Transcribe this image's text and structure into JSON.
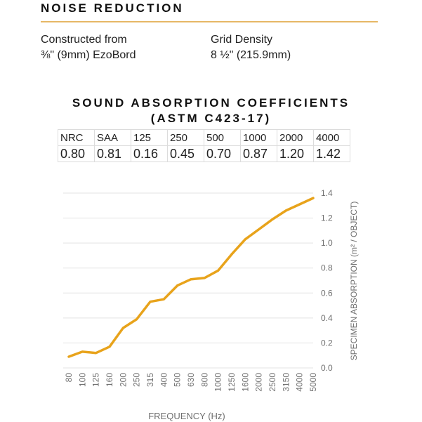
{
  "header": {
    "title": "NOISE  REDUCTION"
  },
  "specs": {
    "left": {
      "label": "Constructed from",
      "value": "⅜\" (9mm) EzoBord"
    },
    "right": {
      "label": "Grid Density",
      "value": "8 ½\" (215.9mm)"
    }
  },
  "section": {
    "title_line1": "SOUND ABSORPTION COEFFICIENTS",
    "title_line2": "(ASTM C423-17)"
  },
  "coefficients_table": {
    "headers": [
      "NRC",
      "SAA",
      "125",
      "250",
      "500",
      "1000",
      "2000",
      "4000"
    ],
    "values": [
      "0.80",
      "0.81",
      "0.16",
      "0.45",
      "0.70",
      "0.87",
      "1.20",
      "1.42"
    ]
  },
  "colors": {
    "line": "#e8a31b",
    "grid": "#e3e3e3",
    "axis_text": "#6f6f6f",
    "rule": "#e6b866"
  },
  "chart_data": {
    "type": "line",
    "xlabel": "FREQUENCY (Hz)",
    "ylabel": "SPECIMEN ABSORPTION (m² / OBJECT)",
    "categories": [
      "80",
      "100",
      "125",
      "160",
      "200",
      "250",
      "315",
      "400",
      "500",
      "630",
      "800",
      "1000",
      "1250",
      "1600",
      "2000",
      "2500",
      "3150",
      "4000",
      "5000"
    ],
    "series": [
      {
        "values": [
          0.09,
          0.13,
          0.12,
          0.17,
          0.32,
          0.39,
          0.53,
          0.55,
          0.66,
          0.71,
          0.72,
          0.78,
          0.91,
          1.03,
          1.11,
          1.19,
          1.26,
          1.31,
          1.36
        ]
      }
    ],
    "ylim": [
      0,
      1.4
    ],
    "yticks": [
      "0.0",
      "0.2",
      "0.4",
      "0.6",
      "0.8",
      "1.0",
      "1.2",
      "1.4"
    ],
    "y_axis_side": "right",
    "grid": true
  }
}
